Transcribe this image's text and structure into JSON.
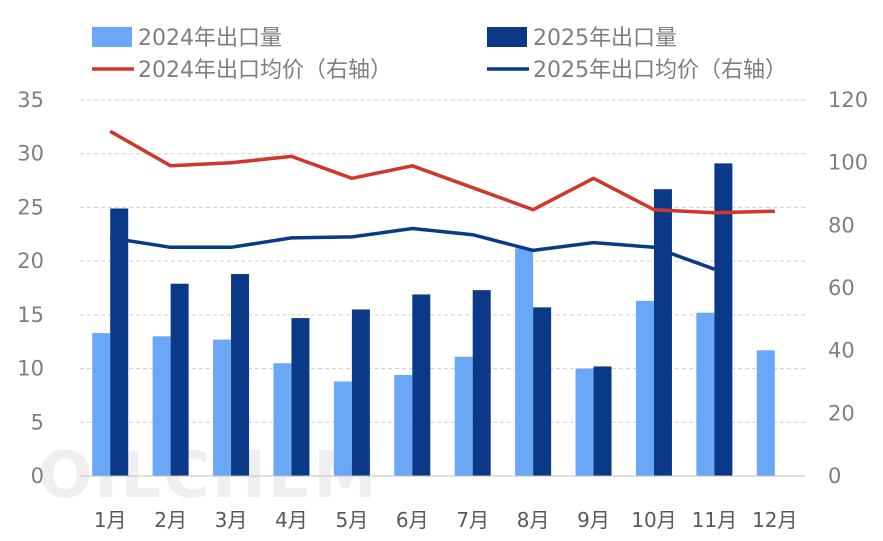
{
  "watermark": "OILCHEM",
  "chart_data": {
    "type": "bar",
    "categories": [
      "1月",
      "2月",
      "3月",
      "4月",
      "5月",
      "6月",
      "7月",
      "8月",
      "9月",
      "10月",
      "11月",
      "12月"
    ],
    "series": [
      {
        "name": "2024年出口量",
        "kind": "bar",
        "axis": "left",
        "color": "#6aa8f7",
        "values": [
          13.3,
          13.0,
          12.7,
          10.5,
          8.8,
          9.4,
          11.1,
          21.2,
          10.0,
          16.3,
          15.2,
          11.7
        ]
      },
      {
        "name": "2025年出口量",
        "kind": "bar",
        "axis": "left",
        "color": "#0a3a87",
        "values": [
          24.9,
          17.9,
          18.8,
          14.7,
          15.5,
          16.9,
          17.3,
          15.7,
          10.2,
          26.7,
          29.1,
          null
        ]
      },
      {
        "name": "2024年出口均价（右轴）",
        "kind": "line",
        "axis": "right",
        "color": "#d1362b",
        "values": [
          110,
          99,
          100,
          102,
          95,
          99,
          92,
          85,
          95,
          85,
          84,
          84.5
        ]
      },
      {
        "name": "2025年出口均价（右轴）",
        "kind": "line",
        "axis": "right",
        "color": "#0a3a87",
        "values": [
          76,
          73,
          73,
          76,
          76.3,
          79,
          77,
          72,
          74.5,
          73,
          66,
          null
        ]
      }
    ],
    "y_left": {
      "min": 0,
      "max": 35,
      "ticks": [
        "0",
        "5",
        "10",
        "15",
        "20",
        "25",
        "30",
        "35"
      ]
    },
    "y_right": {
      "min": 0,
      "max": 120,
      "ticks": [
        "0",
        "20",
        "40",
        "60",
        "80",
        "100",
        "120"
      ]
    },
    "grid": true,
    "legend_position": "top"
  }
}
